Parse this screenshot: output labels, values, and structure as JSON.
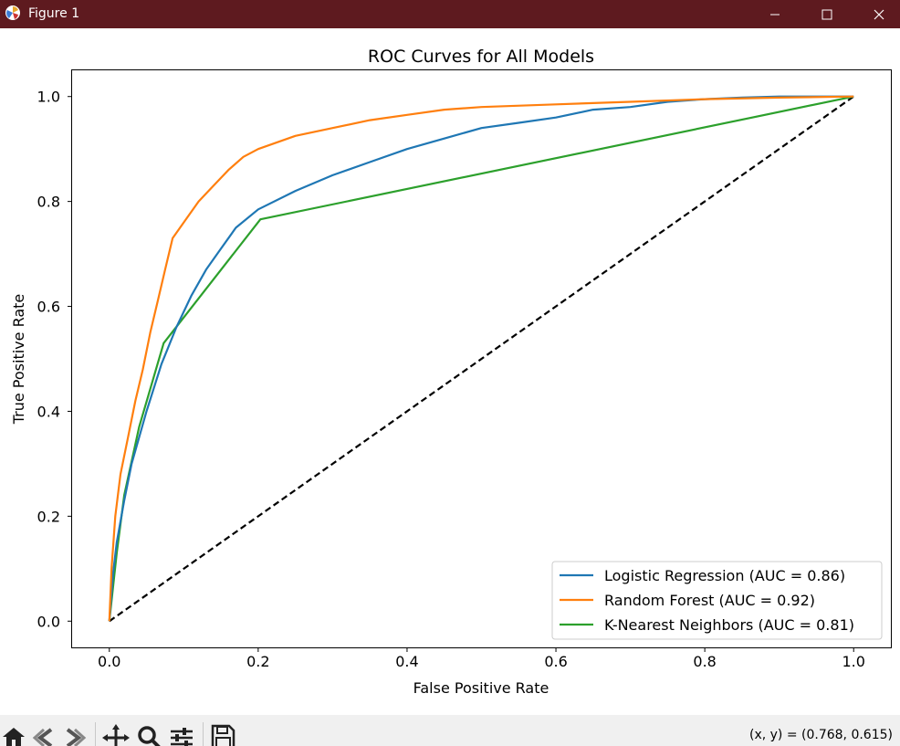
{
  "window": {
    "title": "Figure 1",
    "titlebar_color": "#5e1a1f"
  },
  "toolbar": {
    "coordinates": "(x, y) = (0.768, 0.615)",
    "buttons": [
      "home-icon",
      "back-icon",
      "forward-icon",
      "pan-icon",
      "zoom-icon",
      "configure-subplots-icon",
      "save-icon"
    ]
  },
  "chart_data": {
    "type": "line",
    "title": "ROC Curves for All Models",
    "xlabel": "False Positive Rate",
    "ylabel": "True Positive Rate",
    "xlim": [
      -0.05,
      1.05
    ],
    "ylim": [
      -0.05,
      1.05
    ],
    "xticks": [
      "0.0",
      "0.2",
      "0.4",
      "0.6",
      "0.8",
      "1.0"
    ],
    "yticks": [
      "0.0",
      "0.2",
      "0.4",
      "0.6",
      "0.8",
      "1.0"
    ],
    "grid": false,
    "legend_position": "lower-right",
    "series": [
      {
        "name": "Logistic Regression (AUC = 0.86)",
        "color": "#1f77b4",
        "x": [
          0,
          0.005,
          0.01,
          0.02,
          0.03,
          0.05,
          0.07,
          0.09,
          0.11,
          0.13,
          0.15,
          0.17,
          0.2,
          0.25,
          0.3,
          0.35,
          0.4,
          0.45,
          0.5,
          0.55,
          0.6,
          0.65,
          0.7,
          0.75,
          0.8,
          0.85,
          0.9,
          1.0
        ],
        "y": [
          0,
          0.09,
          0.15,
          0.23,
          0.3,
          0.4,
          0.49,
          0.56,
          0.62,
          0.67,
          0.71,
          0.75,
          0.785,
          0.82,
          0.85,
          0.875,
          0.9,
          0.92,
          0.94,
          0.95,
          0.96,
          0.975,
          0.98,
          0.99,
          0.995,
          0.998,
          1.0,
          1.0
        ]
      },
      {
        "name": "Random Forest (AUC = 0.92)",
        "color": "#ff7f0e",
        "x": [
          0,
          0.003,
          0.008,
          0.015,
          0.025,
          0.035,
          0.045,
          0.055,
          0.065,
          0.075,
          0.085,
          0.1,
          0.12,
          0.14,
          0.16,
          0.18,
          0.2,
          0.25,
          0.3,
          0.35,
          0.4,
          0.45,
          0.5,
          0.6,
          0.7,
          0.8,
          0.9,
          1.0
        ],
        "y": [
          0,
          0.1,
          0.2,
          0.28,
          0.35,
          0.42,
          0.48,
          0.55,
          0.61,
          0.67,
          0.73,
          0.76,
          0.8,
          0.83,
          0.86,
          0.885,
          0.9,
          0.925,
          0.94,
          0.955,
          0.965,
          0.975,
          0.98,
          0.985,
          0.99,
          0.995,
          0.998,
          1.0
        ]
      },
      {
        "name": "K-Nearest Neighbors (AUC = 0.81)",
        "color": "#2ca02c",
        "x": [
          0,
          0.01,
          0.02,
          0.04,
          0.073,
          0.203,
          1.0
        ],
        "y": [
          0,
          0.13,
          0.24,
          0.37,
          0.53,
          0.766,
          1.0
        ]
      },
      {
        "name": "",
        "color": "#000000",
        "dashed": true,
        "x": [
          0,
          1
        ],
        "y": [
          0,
          1
        ]
      }
    ]
  }
}
